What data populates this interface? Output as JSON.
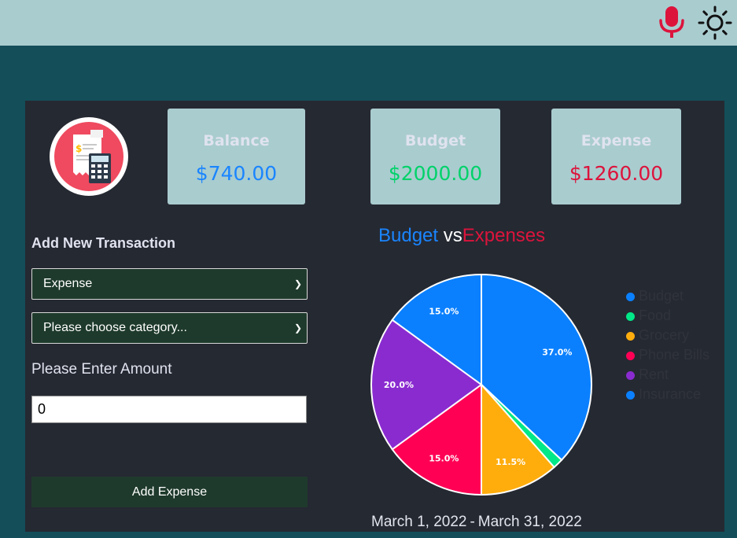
{
  "header": {
    "mic_icon": "microphone-icon",
    "theme_icon": "sun-icon"
  },
  "cards": {
    "balance": {
      "label": "Balance",
      "value": "$740.00",
      "color": "#1a85ff"
    },
    "budget": {
      "label": "Budget",
      "value": "$2000.00",
      "color": "#00d26a"
    },
    "expense": {
      "label": "Expense",
      "value": "$1260.00",
      "color": "#dc143c"
    }
  },
  "form": {
    "title": "Add New Transaction",
    "type_select": {
      "value": "Expense"
    },
    "category_select": {
      "value": "Please choose category..."
    },
    "amount_label": "Please Enter Amount",
    "amount_value": "0",
    "submit_label": "Add Expense"
  },
  "chart_title": {
    "part1": "Budget",
    "part2": "vs",
    "part3": "Expenses"
  },
  "chart_data": {
    "type": "pie",
    "title": "Budget vs Expenses",
    "slices": [
      {
        "name": "Budget",
        "value": 37.0,
        "label": "37.0%",
        "color": "#0a80ff"
      },
      {
        "name": "Food",
        "value": 1.5,
        "label": "",
        "color": "#00e887"
      },
      {
        "name": "Grocery",
        "value": 11.5,
        "label": "11.5%",
        "color": "#ffad0d"
      },
      {
        "name": "Phone Bills",
        "value": 15.0,
        "label": "15.0%",
        "color": "#ff0055"
      },
      {
        "name": "Rent",
        "value": 20.0,
        "label": "20.0%",
        "color": "#8a2bd0"
      },
      {
        "name": "Insurance",
        "value": 15.0,
        "label": "15.0%",
        "color": "#0a80ff"
      }
    ],
    "legend": [
      "Budget",
      "Food",
      "Grocery",
      "Phone Bills",
      "Rent",
      "Insurance"
    ],
    "legend_position": "right"
  },
  "date_range": {
    "start": "March 1, 2022",
    "sep": "-",
    "end": "March 31, 2022"
  }
}
